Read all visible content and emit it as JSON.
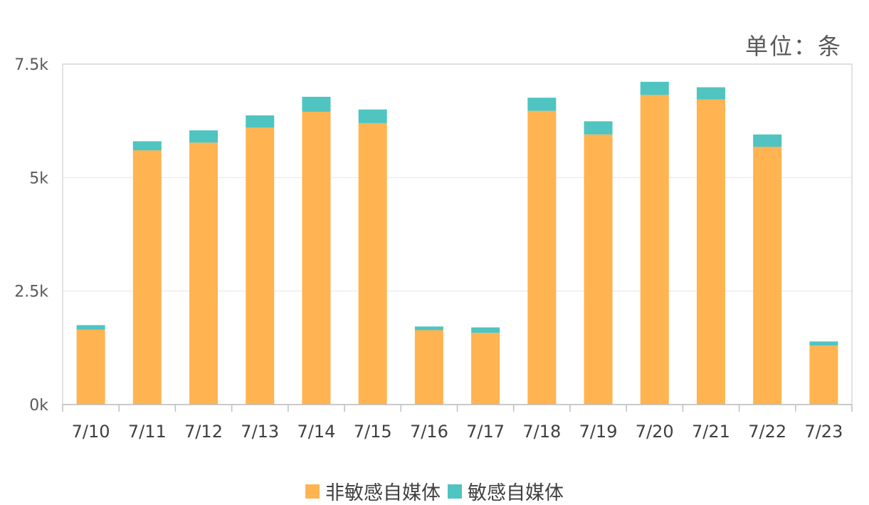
{
  "unit_label": "单位：条",
  "colors": {
    "non_sensitive": "#FFB351",
    "sensitive": "#4FC4C0",
    "grid": "#EDEDED",
    "axis": "#BFBFBF"
  },
  "chart_data": {
    "type": "bar",
    "stacked": true,
    "categories": [
      "7/10",
      "7/11",
      "7/12",
      "7/13",
      "7/14",
      "7/15",
      "7/16",
      "7/17",
      "7/18",
      "7/19",
      "7/20",
      "7/21",
      "7/22",
      "7/23"
    ],
    "series": [
      {
        "name": "非敏感自媒体",
        "values": [
          1650,
          5600,
          5770,
          6100,
          6450,
          6200,
          1640,
          1580,
          6470,
          5950,
          6820,
          6720,
          5680,
          1300
        ]
      },
      {
        "name": "敏感自媒体",
        "values": [
          100,
          200,
          270,
          270,
          330,
          300,
          80,
          120,
          290,
          290,
          290,
          270,
          270,
          90
        ]
      }
    ],
    "ylim": [
      0,
      7500
    ],
    "yticks": [
      "0k",
      "2.5k",
      "5k",
      "7.5k"
    ],
    "ytick_values": [
      0,
      2500,
      5000,
      7500
    ],
    "grid": true,
    "legend_position": "bottom"
  }
}
